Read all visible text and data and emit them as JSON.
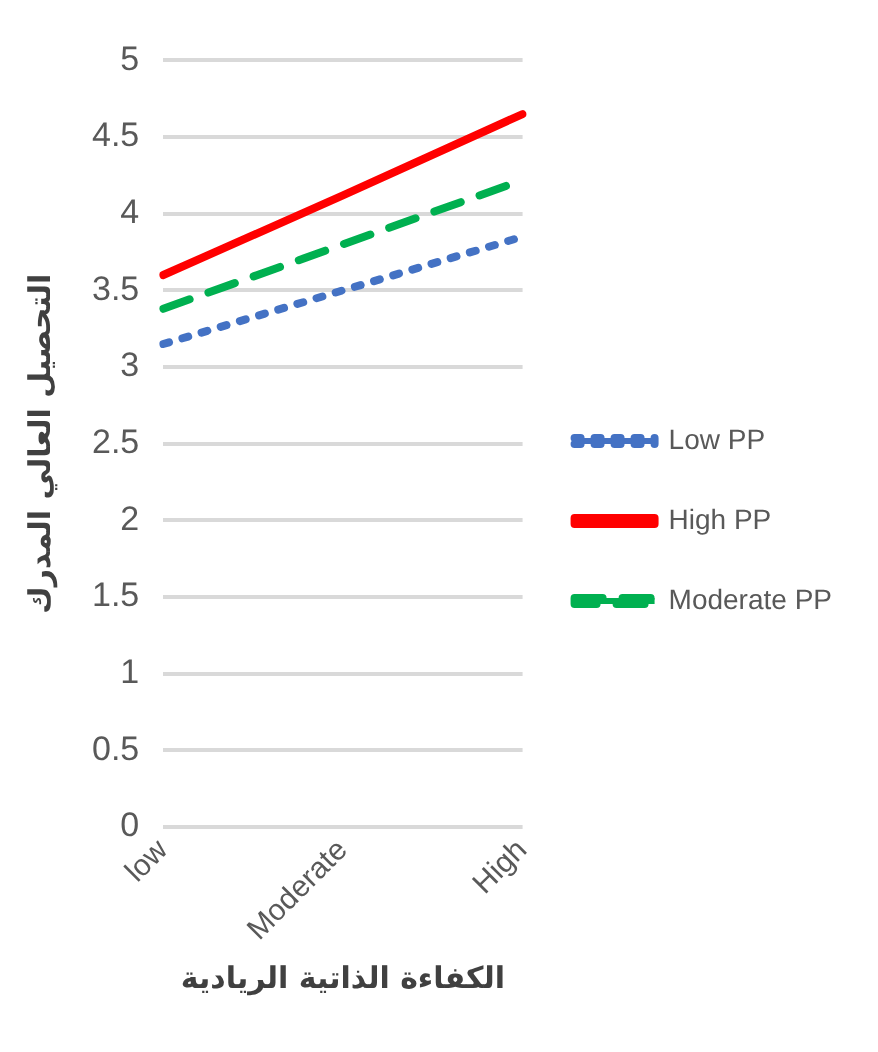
{
  "chart_data": {
    "type": "line",
    "xlabel": "الكفاءة الذاتية الريادية",
    "ylabel": "التحصيل العالي المدرك",
    "categories": [
      "low",
      "Moderate",
      "High"
    ],
    "series": [
      {
        "name": "Low PP",
        "color": "#4472c4",
        "line_style": "dotted",
        "values": [
          3.15,
          3.5,
          3.85
        ]
      },
      {
        "name": "High PP",
        "color": "#ff0000",
        "line_style": "solid",
        "values": [
          3.6,
          4.12,
          4.65
        ]
      },
      {
        "name": "Moderate PP",
        "color": "#00b050",
        "line_style": "dashed",
        "values": [
          3.38,
          3.8,
          4.22
        ]
      }
    ],
    "ylim": [
      0,
      5
    ],
    "yticks": [
      0,
      0.5,
      1,
      1.5,
      2,
      2.5,
      3,
      3.5,
      4,
      4.5,
      5
    ],
    "grid": "y",
    "legend": "right",
    "marker": "none"
  }
}
